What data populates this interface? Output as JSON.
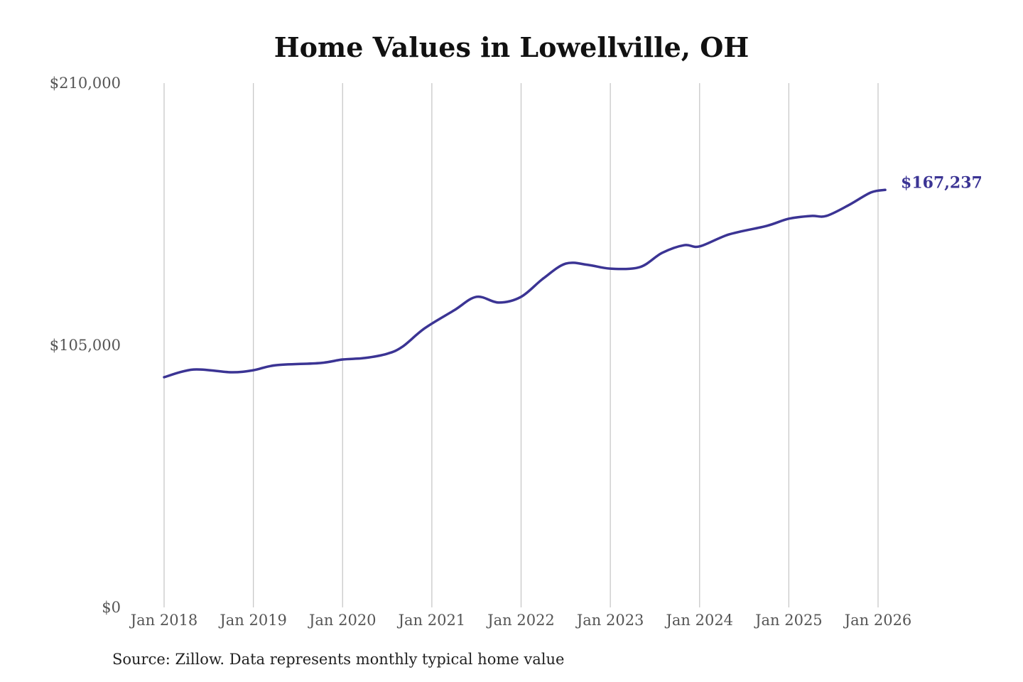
{
  "chart_data": {
    "type": "line",
    "title": "Home Values in Lowellville, OH",
    "source": "Source: Zillow. Data represents monthly typical home value",
    "xlabel": "",
    "ylabel": "",
    "ylim": [
      0,
      210000
    ],
    "xlim": [
      2018.0,
      2026.08
    ],
    "y_ticks": [
      {
        "value": 0,
        "label": "$0"
      },
      {
        "value": 105000,
        "label": "$105,000"
      },
      {
        "value": 210000,
        "label": "$210,000"
      }
    ],
    "x_ticks": [
      {
        "value": 2018,
        "label": "Jan 2018"
      },
      {
        "value": 2019,
        "label": "Jan 2019"
      },
      {
        "value": 2020,
        "label": "Jan 2020"
      },
      {
        "value": 2021,
        "label": "Jan 2021"
      },
      {
        "value": 2022,
        "label": "Jan 2022"
      },
      {
        "value": 2023,
        "label": "Jan 2023"
      },
      {
        "value": 2024,
        "label": "Jan 2024"
      },
      {
        "value": 2025,
        "label": "Jan 2025"
      },
      {
        "value": 2026,
        "label": "Jan 2026"
      }
    ],
    "grid": "vertical",
    "series": [
      {
        "name": "Typical home value",
        "color": "#3b3494",
        "end_label": "$167,237",
        "x": [
          2018.0,
          2018.33,
          2018.75,
          2019.0,
          2019.25,
          2019.75,
          2020.0,
          2020.25,
          2020.5,
          2020.67,
          2020.92,
          2021.25,
          2021.5,
          2021.75,
          2022.0,
          2022.25,
          2022.5,
          2022.75,
          2023.0,
          2023.33,
          2023.58,
          2023.83,
          2024.0,
          2024.33,
          2024.75,
          2025.0,
          2025.25,
          2025.42,
          2025.67,
          2025.92,
          2026.08
        ],
        "y": [
          92200,
          95300,
          94200,
          95000,
          97000,
          97900,
          99300,
          99900,
          101600,
          104400,
          111800,
          119000,
          124400,
          122100,
          124400,
          131800,
          137700,
          137200,
          135700,
          136300,
          142000,
          145100,
          144600,
          149400,
          152800,
          155700,
          156800,
          156800,
          161100,
          166200,
          167237
        ]
      }
    ]
  }
}
